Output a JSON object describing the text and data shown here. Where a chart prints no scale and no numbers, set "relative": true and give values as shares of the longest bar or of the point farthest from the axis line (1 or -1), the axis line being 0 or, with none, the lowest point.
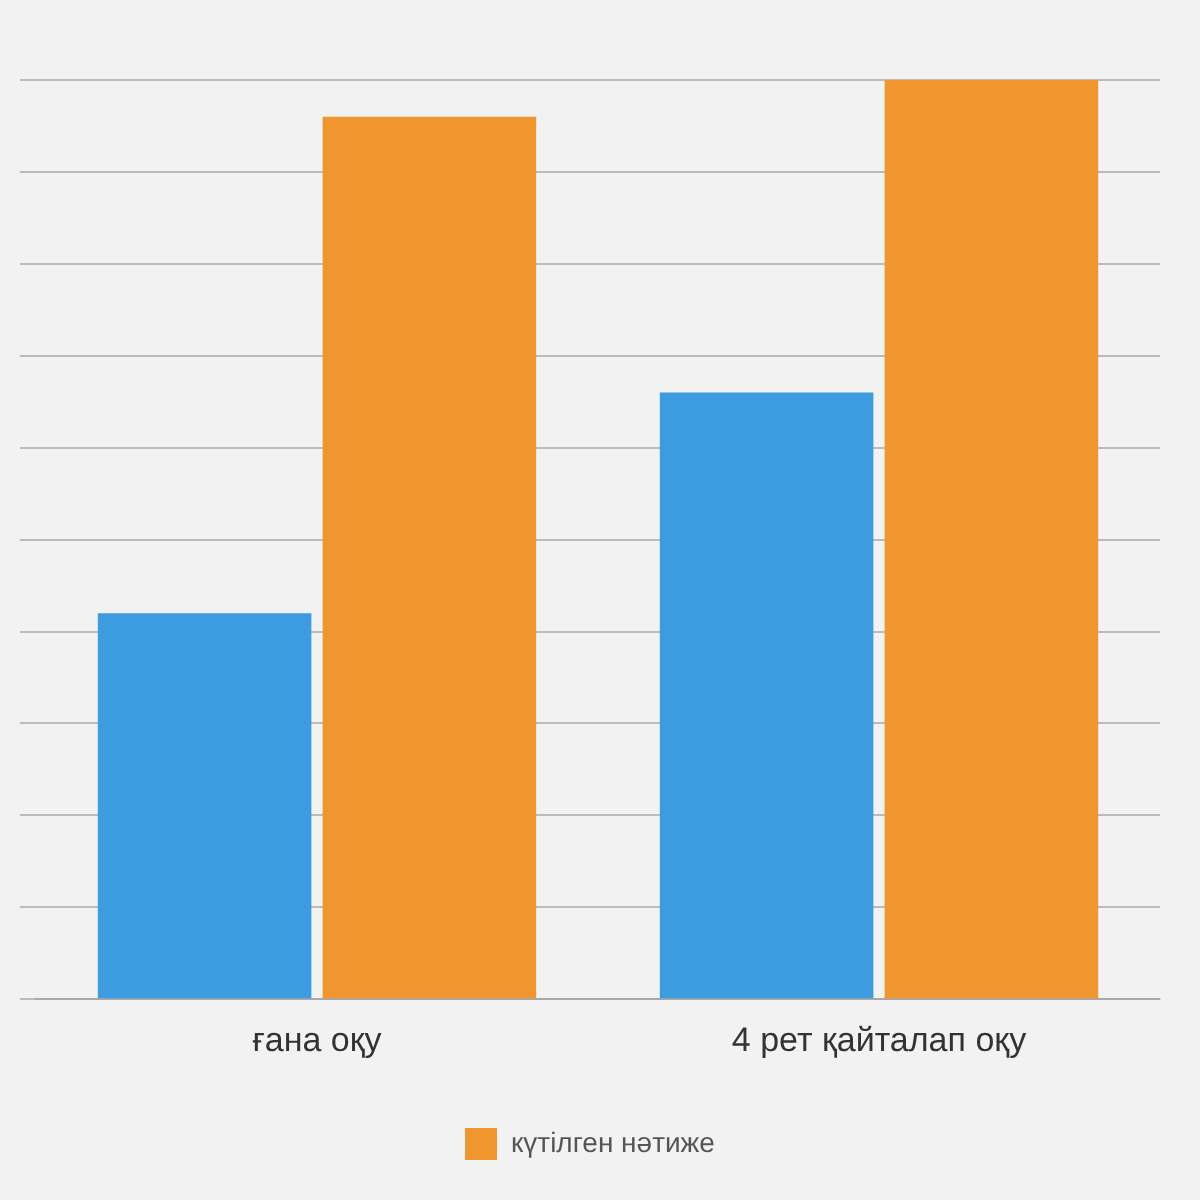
{
  "chart_data": {
    "type": "bar",
    "relative": true,
    "categories": [
      "ғана оқу",
      "4 рет қайталап оқу"
    ],
    "series": [
      {
        "color": "#3d9be0",
        "values": [
          0.42,
          0.66
        ]
      },
      {
        "name": "күтілген нәтиже",
        "color": "#f0962e",
        "values": [
          0.96,
          1
        ]
      }
    ],
    "grid": "y",
    "legend": "bottom"
  }
}
